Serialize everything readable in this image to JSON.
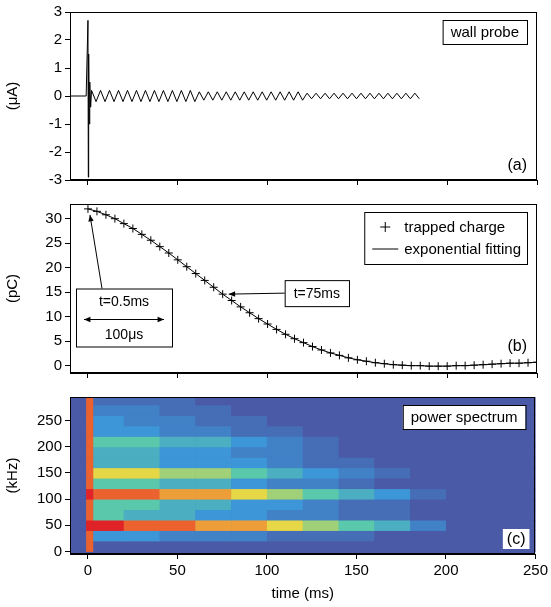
{
  "chart_data": [
    {
      "type": "line",
      "title": "wall probe",
      "annotations": [
        "(a)"
      ],
      "y_label": "(μA)",
      "tick_labels": "y",
      "grid": false,
      "color": "#000000",
      "xlim": [
        -10,
        250
      ],
      "xticks": [
        0,
        50,
        100,
        150,
        200,
        250
      ],
      "ylim": [
        -3,
        3
      ],
      "yticks": [
        -3,
        -2,
        -1,
        0,
        1,
        2,
        3
      ],
      "x": [
        -10,
        -1,
        0,
        0.2,
        0.4,
        0.7,
        1,
        1.5,
        2,
        4.5,
        7,
        9.5,
        12,
        14.5,
        17,
        19.5,
        22,
        24.5,
        27,
        29.5,
        32,
        34.5,
        37,
        39.5,
        42,
        44.5,
        47,
        49.5,
        52,
        54.5,
        57,
        59.5,
        62,
        64.5,
        67,
        69.5,
        72,
        74.5,
        77,
        79.5,
        82,
        84.5,
        87,
        89.5,
        92,
        94.5,
        97,
        99.5,
        102,
        104.5,
        107,
        109.5,
        112,
        114.5,
        117,
        119.5,
        122,
        124.5,
        127,
        129.5,
        132,
        134.5,
        137,
        139.5,
        142,
        144.5,
        147,
        149.5,
        152,
        154.5,
        157,
        159.5,
        162,
        164.5,
        167,
        169.5,
        172,
        174.5,
        177,
        179.5,
        182,
        184.5
      ],
      "values": [
        0,
        0,
        2.7,
        -2.9,
        1.5,
        -1,
        0.5,
        -0.4,
        0.2,
        -0.2,
        0.2,
        -0.2,
        0.2,
        -0.2,
        0.2,
        -0.2,
        0.2,
        -0.2,
        0.2,
        -0.2,
        0.2,
        -0.2,
        0.2,
        -0.2,
        0.2,
        -0.2,
        0.2,
        -0.2,
        0.2,
        -0.2,
        0.2,
        -0.2,
        0.15,
        -0.15,
        0.15,
        -0.15,
        0.15,
        -0.15,
        0.15,
        -0.15,
        0.15,
        -0.15,
        0.15,
        -0.15,
        0.15,
        -0.15,
        0.15,
        -0.15,
        0.15,
        -0.15,
        0.15,
        -0.15,
        0.15,
        -0.15,
        0.15,
        -0.15,
        0.1,
        -0.1,
        0.1,
        -0.1,
        0.1,
        -0.1,
        0.1,
        -0.1,
        0.1,
        -0.1,
        0.1,
        -0.1,
        0.1,
        -0.1,
        0.1,
        -0.1,
        0.1,
        -0.1,
        0.1,
        -0.1,
        0.1,
        -0.1,
        0.1,
        -0.1,
        0.1,
        -0.1
      ]
    },
    {
      "type": "line",
      "annotations": [
        "(b)",
        "t=0.5ms",
        "100μs",
        "t=75ms"
      ],
      "y_label": "(pC)",
      "tick_labels": "y",
      "grid": false,
      "legend": "upper right",
      "xlim": [
        -10,
        250
      ],
      "xticks": [
        0,
        50,
        100,
        150,
        200,
        250
      ],
      "ylim": [
        -1.5,
        33
      ],
      "yticks": [
        0,
        5,
        10,
        15,
        20,
        25,
        30
      ],
      "x": [
        0,
        5,
        10,
        15,
        20,
        25,
        30,
        35,
        40,
        45,
        50,
        55,
        60,
        65,
        70,
        75,
        80,
        85,
        90,
        95,
        100,
        105,
        110,
        115,
        120,
        125,
        130,
        135,
        140,
        145,
        150,
        155,
        160,
        165,
        170,
        175,
        180,
        185,
        190,
        195,
        200,
        205,
        210,
        215,
        220,
        225,
        230,
        235,
        240,
        245,
        250
      ],
      "series": [
        {
          "name": "trapped charge",
          "type": "scatter",
          "marker": "plus",
          "color": "#000000",
          "values": [
            32,
            31.5,
            30.8,
            30,
            29,
            28,
            26.8,
            25.6,
            24.3,
            23,
            21.6,
            20.2,
            18.8,
            17.4,
            16,
            14.6,
            13.3,
            12,
            10.8,
            9.6,
            8.5,
            7.4,
            6.4,
            5.5,
            4.7,
            3.9,
            3.2,
            2.6,
            2.1,
            1.6,
            1.2,
            0.9,
            0.6,
            0.4,
            0.2,
            0.1,
            0,
            0,
            -0.1,
            -0.1,
            -0.1,
            0,
            0,
            0.1,
            0.2,
            0.3,
            0.4,
            0.5,
            0.5,
            0.6,
            0.7
          ]
        },
        {
          "name": "exponential fitting",
          "type": "line",
          "line_style": "solid",
          "color": "#000000",
          "values": [
            32,
            31.5,
            30.8,
            30,
            29,
            28,
            26.8,
            25.6,
            24.3,
            23,
            21.6,
            20.2,
            18.8,
            17.4,
            16,
            14.6,
            13.3,
            12,
            10.8,
            9.6,
            8.5,
            7.4,
            6.4,
            5.5,
            4.7,
            3.9,
            3.2,
            2.6,
            2.1,
            1.6,
            1.2,
            0.9,
            0.6,
            0.4,
            0.2,
            0.1,
            0,
            0,
            -0.1,
            -0.1,
            -0.1,
            0,
            0,
            0.1,
            0.2,
            0.3,
            0.4,
            0.5,
            0.5,
            0.6,
            0.7
          ]
        }
      ]
    },
    {
      "type": "heatmap",
      "title": "power spectrum",
      "annotations": [
        "(c)"
      ],
      "x_label": "time (ms)",
      "y_label": "(kHz)",
      "grid": false,
      "xlim": [
        -10,
        250
      ],
      "xticks": [
        0,
        50,
        100,
        150,
        200,
        250
      ],
      "ylim": [
        -5,
        295
      ],
      "yticks": [
        0,
        50,
        100,
        150,
        200,
        250
      ],
      "x_bins": [
        -10,
        -1,
        3,
        20,
        40,
        60,
        80,
        100,
        120,
        140,
        160,
        180,
        200,
        220,
        250
      ],
      "y_bins": [
        0,
        20,
        40,
        60,
        80,
        100,
        120,
        140,
        160,
        180,
        200,
        220,
        240,
        260,
        280,
        300
      ],
      "color_range": [
        0,
        10
      ],
      "cells": [
        [
          0,
          9,
          0,
          0,
          0,
          0,
          0,
          0,
          0,
          0,
          0,
          0,
          0,
          0
        ],
        [
          0,
          9,
          3,
          3,
          2,
          2,
          2,
          1,
          1,
          1,
          0,
          0,
          0,
          0
        ],
        [
          0,
          10,
          10,
          9,
          9,
          8,
          8,
          7,
          6,
          5,
          4,
          2,
          0,
          0
        ],
        [
          0,
          9,
          5,
          4,
          4,
          3,
          3,
          2,
          2,
          1,
          1,
          0,
          0,
          0
        ],
        [
          0,
          9,
          5,
          5,
          4,
          4,
          3,
          3,
          2,
          1,
          1,
          0,
          0,
          0
        ],
        [
          0,
          10,
          9,
          9,
          8,
          8,
          7,
          6,
          5,
          4,
          3,
          1,
          0,
          0
        ],
        [
          0,
          9,
          5,
          5,
          4,
          4,
          3,
          2,
          2,
          1,
          0,
          0,
          0,
          0
        ],
        [
          0,
          9,
          7,
          7,
          6,
          6,
          5,
          4,
          3,
          2,
          1,
          0,
          0,
          0
        ],
        [
          0,
          9,
          4,
          4,
          3,
          3,
          3,
          2,
          1,
          1,
          0,
          0,
          0,
          0
        ],
        [
          0,
          9,
          4,
          4,
          3,
          3,
          2,
          2,
          1,
          0,
          0,
          0,
          0,
          0
        ],
        [
          0,
          9,
          5,
          5,
          4,
          4,
          3,
          2,
          1,
          0,
          0,
          0,
          0,
          0
        ],
        [
          0,
          9,
          3,
          3,
          2,
          2,
          1,
          1,
          0,
          0,
          0,
          0,
          0,
          0
        ],
        [
          0,
          9,
          3,
          2,
          2,
          1,
          1,
          0,
          0,
          0,
          0,
          0,
          0,
          0
        ],
        [
          0,
          9,
          2,
          2,
          1,
          1,
          0,
          0,
          0,
          0,
          0,
          0,
          0,
          0
        ],
        [
          0,
          9,
          1,
          1,
          1,
          0,
          0,
          0,
          0,
          0,
          0,
          0,
          0,
          0
        ]
      ]
    }
  ]
}
